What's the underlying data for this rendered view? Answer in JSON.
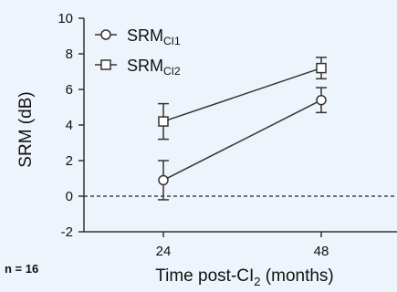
{
  "chart_data": {
    "type": "line",
    "x": [
      24,
      48
    ],
    "x_tick_labels": [
      "24",
      "48"
    ],
    "y_ticks": [
      -2,
      0,
      2,
      4,
      6,
      8,
      10
    ],
    "ylim": [
      -2,
      10
    ],
    "ylabel": "SRM (dB)",
    "xlabel": {
      "main": "Time post-CI",
      "subscript": "2",
      "suffix": " (months)"
    },
    "reference_line": {
      "y": 0,
      "style": "dashed"
    },
    "legend_placement": "top-left",
    "series": [
      {
        "name": "SRM",
        "name_subscript": "CI1",
        "marker": "circle",
        "values": [
          0.9,
          5.4
        ],
        "error": [
          1.1,
          0.7
        ]
      },
      {
        "name": "SRM",
        "name_subscript": "CI2",
        "marker": "square",
        "values": [
          4.2,
          7.2
        ],
        "error": [
          1.0,
          0.6
        ]
      }
    ]
  },
  "note": "n = 16"
}
